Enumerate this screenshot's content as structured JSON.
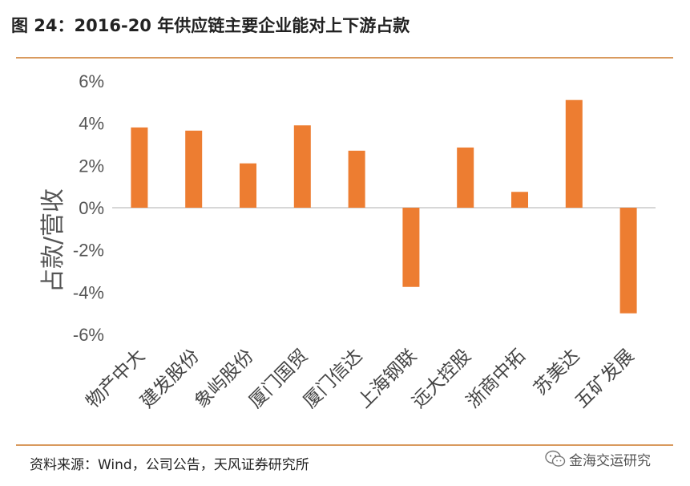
{
  "title": "图 24：2016-20 年供应链主要企业能对上下游占款",
  "source": "资料来源：Wind，公司公告，天风证券研究所",
  "watermark": "金海交运研究",
  "watermark_icon": "wechat-icon",
  "colors": {
    "bar": "#ED7D31",
    "accent_rule": "#D99A5E",
    "zero_line": "#BFBFBF"
  },
  "chart_data": {
    "type": "bar",
    "categories": [
      "物产中大",
      "建发股份",
      "象屿股份",
      "厦门国贸",
      "厦门信达",
      "上海钢联",
      "远大控股",
      "浙商中拓",
      "苏美达",
      "五矿发展"
    ],
    "values": [
      3.8,
      3.65,
      2.1,
      3.9,
      2.7,
      -3.75,
      2.85,
      0.75,
      5.1,
      -5.0
    ],
    "ylabel": "占款/营收",
    "ylim": [
      -6,
      6
    ],
    "yticks": [
      6,
      4,
      2,
      0,
      -2,
      -4,
      -6
    ],
    "ytick_labels": [
      "6%",
      "4%",
      "2%",
      "0%",
      "-2%",
      "-4%",
      "-6%"
    ],
    "grid": false,
    "legend": "none"
  }
}
